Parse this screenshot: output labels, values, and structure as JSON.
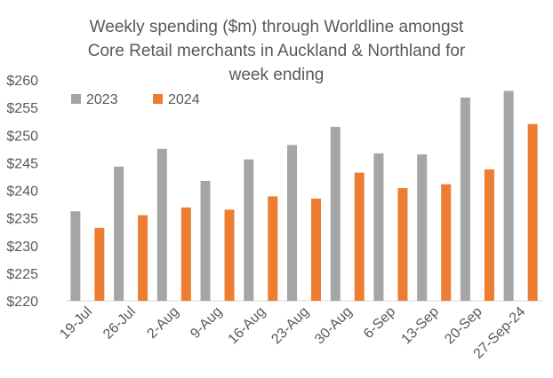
{
  "chart_data": {
    "type": "bar",
    "title_lines": [
      "Weekly spending ($m) through Worldline amongst",
      "Core Retail merchants in Auckland & Northland for",
      "week ending"
    ],
    "categories": [
      "19-Jul",
      "26-Jul",
      "2-Aug",
      "9-Aug",
      "16-Aug",
      "23-Aug",
      "30-Aug",
      "6-Sep",
      "13-Sep",
      "20-Sep",
      "27-Sep-24"
    ],
    "series": [
      {
        "name": "2023",
        "color": "#a5a5a5",
        "values": [
          236.2,
          244.3,
          247.5,
          241.7,
          245.6,
          248.2,
          251.5,
          246.7,
          246.5,
          256.8,
          258.0
        ]
      },
      {
        "name": "2024",
        "color": "#ed7d31",
        "values": [
          233.2,
          235.5,
          236.9,
          236.5,
          238.9,
          238.5,
          243.2,
          240.4,
          241.1,
          243.8,
          252.0
        ]
      }
    ],
    "y_ticks": [
      "$220",
      "$225",
      "$230",
      "$235",
      "$240",
      "$245",
      "$250",
      "$255",
      "$260"
    ],
    "ylim": [
      220,
      260
    ],
    "grid": false,
    "legend_position": "top-left inside"
  }
}
